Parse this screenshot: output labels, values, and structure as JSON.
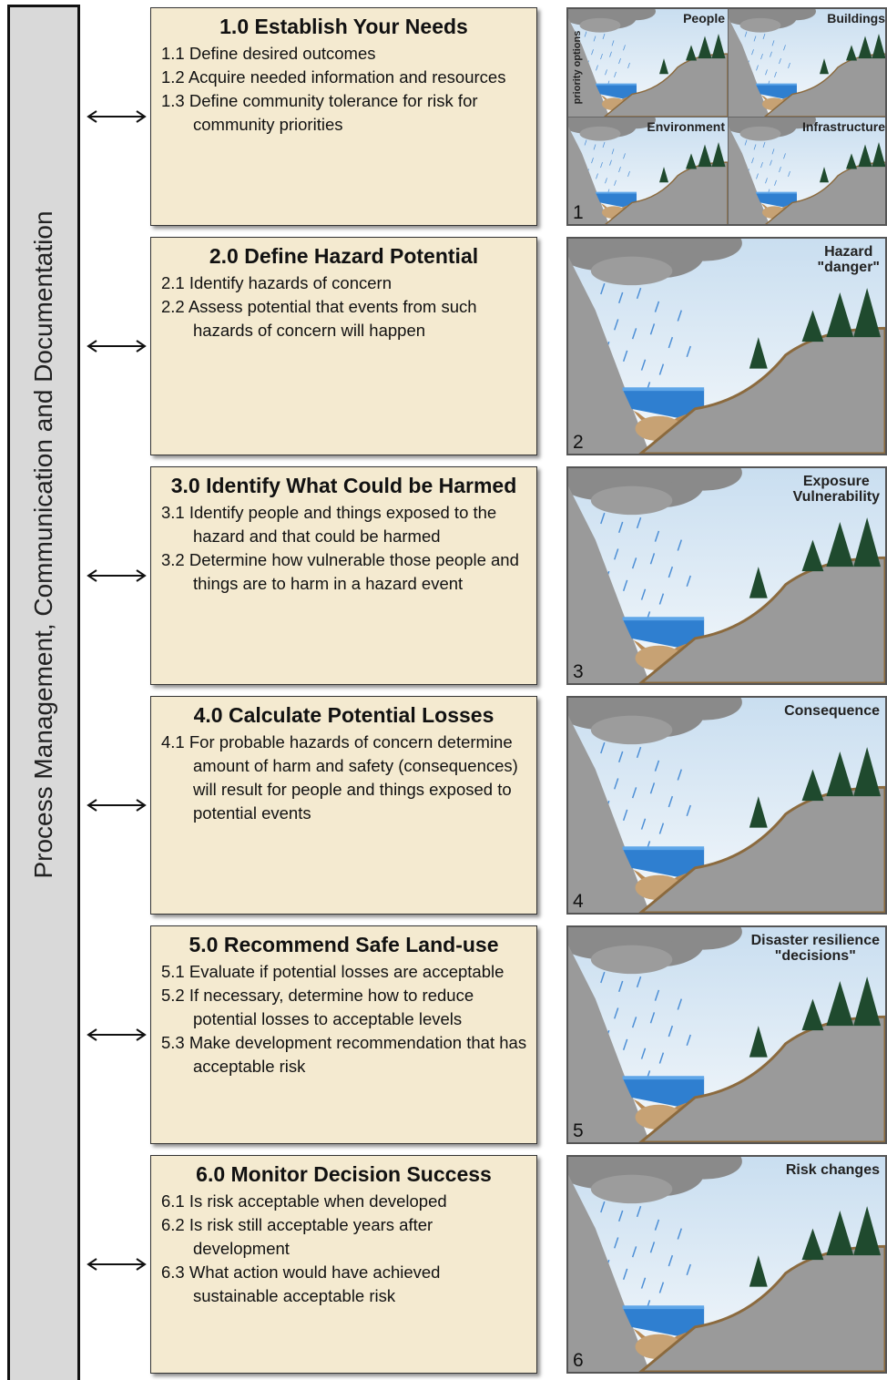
{
  "sidebar": {
    "label": "Process Management, Communication and Documentation"
  },
  "steps": [
    {
      "title": "1.0 Establish Your Needs",
      "items": [
        "1.1 Define desired outcomes",
        "1.2 Acquire needed information and resources",
        "1.3 Define community tolerance for risk for community priorities"
      ]
    },
    {
      "title": "2.0 Define Hazard Potential",
      "items": [
        "2.1 Identify hazards of concern",
        "2.2 Assess potential that events from such hazards of concern will happen"
      ]
    },
    {
      "title": "3.0 Identify What Could be Harmed",
      "items": [
        "3.1 Identify people and things exposed to the hazard and that could be harmed",
        "3.2 Determine how vulnerable those people and things are to harm in a hazard event"
      ]
    },
    {
      "title": "4.0 Calculate Potential Losses",
      "items": [
        "4.1 For probable hazards of concern determine amount of harm and safety (consequences) will result for people and things exposed to potential events"
      ]
    },
    {
      "title": "5.0 Recommend Safe Land-use",
      "items": [
        "5.1 Evaluate if potential losses are acceptable",
        "5.2 If necessary, determine how to reduce potential losses to acceptable levels",
        "5.3 Make development recommendation that has acceptable risk"
      ]
    },
    {
      "title": "6.0 Monitor Decision Success",
      "items": [
        "6.1 Is risk acceptable when developed",
        "6.2 Is risk still acceptable years after development",
        "6.3 What action would have achieved sustainable acceptable risk"
      ]
    }
  ],
  "panels": [
    {
      "number": "1",
      "caption": "priority options",
      "quadrants": [
        "People",
        "Buildings",
        "Environment",
        "Infrastructure"
      ]
    },
    {
      "number": "2",
      "labels": [
        "Hazard",
        "\"danger\""
      ]
    },
    {
      "number": "3",
      "labels": [
        "Exposure",
        "Vulnerability"
      ]
    },
    {
      "number": "4",
      "labels": [
        "Consequence"
      ]
    },
    {
      "number": "5",
      "labels": [
        "Disaster resilience",
        "\"decisions\""
      ]
    },
    {
      "number": "6",
      "labels": [
        "Risk changes"
      ]
    }
  ]
}
